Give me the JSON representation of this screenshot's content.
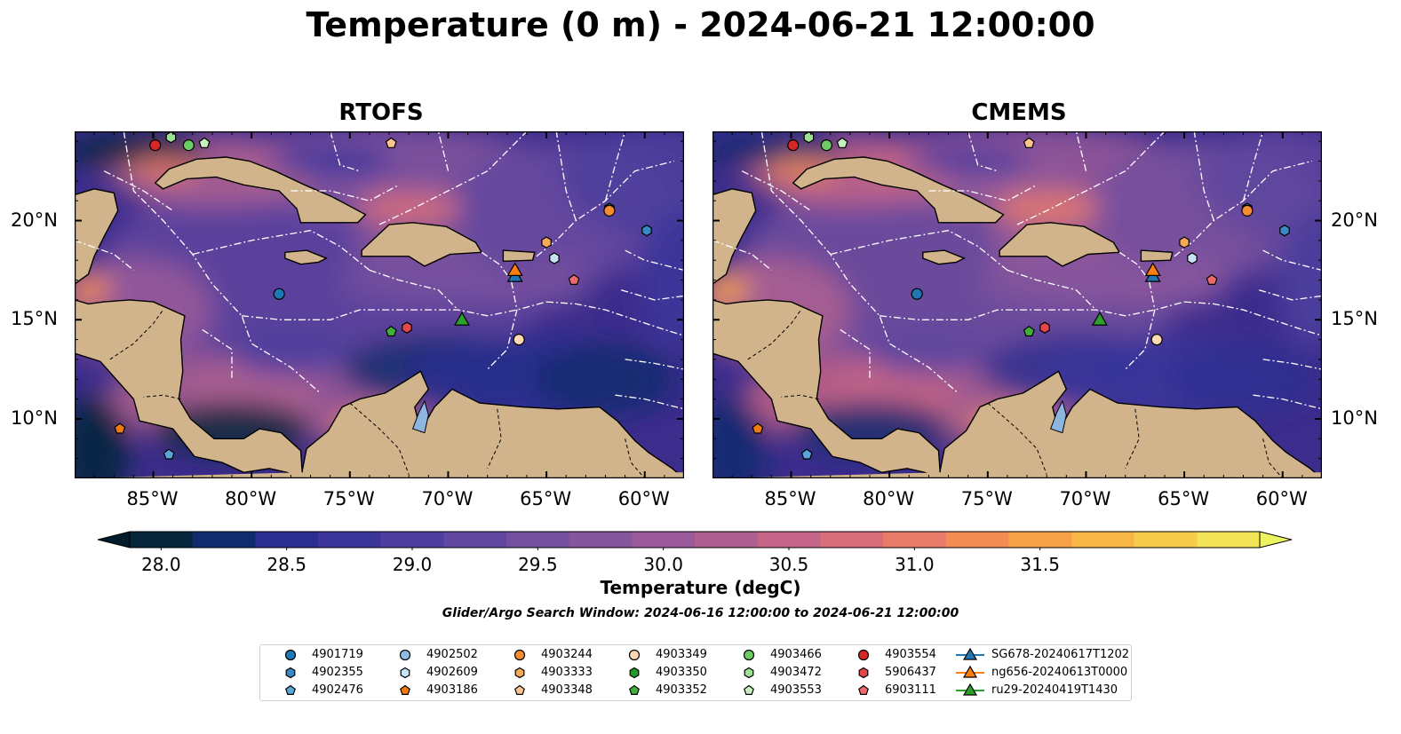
{
  "title": "Temperature (0 m) - 2024-06-21 12:00:00",
  "panels": [
    {
      "id": "rtofs",
      "title": "RTOFS"
    },
    {
      "id": "cmems",
      "title": "CMEMS"
    }
  ],
  "map": {
    "lon_range": [
      -89,
      -58
    ],
    "lat_range": [
      7,
      24.5
    ],
    "lon_ticks": [
      -85,
      -80,
      -75,
      -70,
      -65,
      -60
    ],
    "lon_tick_labels": [
      "85°W",
      "80°W",
      "75°W",
      "70°W",
      "65°W",
      "60°W"
    ],
    "lat_ticks": [
      10,
      15,
      20
    ],
    "lat_tick_labels": [
      "10°N",
      "15°N",
      "20°N"
    ],
    "land_color": "#d2b48c",
    "ocean_base_color": "#3c2c8c",
    "eez_line_color": "#ffffff"
  },
  "colorbar": {
    "min": 28.0,
    "max": 31.5,
    "tick_labels": [
      "28.0",
      "28.5",
      "29.0",
      "29.5",
      "30.0",
      "30.5",
      "31.0",
      "31.5"
    ],
    "ticks": [
      28.0,
      28.5,
      29.0,
      29.5,
      30.0,
      30.5,
      31.0,
      31.5
    ],
    "extend": "both",
    "colors": [
      "#05263b",
      "#112c6e",
      "#2b2f8f",
      "#3c369b",
      "#4e3e9e",
      "#60479f",
      "#734f9f",
      "#85559e",
      "#9a5a99",
      "#af6091",
      "#c56587",
      "#d86e7a",
      "#e87b6a",
      "#f18c55",
      "#f6a047",
      "#f8b647",
      "#f7cc4c",
      "#f2e456"
    ],
    "under_color": "#031a2b",
    "over_color": "#ebf45e",
    "label": "Temperature (degC)"
  },
  "search_window": "Glider/Argo Search Window: 2024-06-16 12:00:00 to 2024-06-21 12:00:00",
  "legend": [
    {
      "label": "4901719",
      "marker": "circle",
      "color": "#1f77b4"
    },
    {
      "label": "4902355",
      "marker": "hexagon",
      "color": "#3a8ac2"
    },
    {
      "label": "4902476",
      "marker": "pentagon",
      "color": "#5aa4d8"
    },
    {
      "label": "4902502",
      "marker": "circle",
      "color": "#8fbde6"
    },
    {
      "label": "4902609",
      "marker": "hexagon",
      "color": "#c6e2f5"
    },
    {
      "label": "4903186",
      "marker": "pentagon",
      "color": "#f07a10"
    },
    {
      "label": "4903244",
      "marker": "circle",
      "color": "#f58c32"
    },
    {
      "label": "4903333",
      "marker": "hexagon",
      "color": "#f8a85a"
    },
    {
      "label": "4903348",
      "marker": "pentagon",
      "color": "#fbc38f"
    },
    {
      "label": "4903349",
      "marker": "circle",
      "color": "#fdd9b5"
    },
    {
      "label": "4903350",
      "marker": "hexagon",
      "color": "#239a29"
    },
    {
      "label": "4903352",
      "marker": "pentagon",
      "color": "#3fae3a"
    },
    {
      "label": "4903466",
      "marker": "circle",
      "color": "#6ccb64"
    },
    {
      "label": "4903472",
      "marker": "hexagon",
      "color": "#9fe094"
    },
    {
      "label": "4903553",
      "marker": "pentagon",
      "color": "#c8f0bf"
    },
    {
      "label": "4903554",
      "marker": "circle",
      "color": "#d62728"
    },
    {
      "label": "5906437",
      "marker": "hexagon",
      "color": "#e2484a"
    },
    {
      "label": "6903111",
      "marker": "pentagon",
      "color": "#ec6a6c"
    },
    {
      "label": "SG678-20240617T1202",
      "marker": "triangle",
      "color": "#1f77b4"
    },
    {
      "label": "ng656-20240613T0000",
      "marker": "triangle",
      "color": "#ff7f0e"
    },
    {
      "label": "ru29-20240419T1430",
      "marker": "triangle",
      "color": "#2ca02c"
    }
  ],
  "observations": [
    {
      "id": "4903554",
      "lon": -84.9,
      "lat": 23.8
    },
    {
      "id": "4903472",
      "lon": -84.1,
      "lat": 24.2
    },
    {
      "id": "4903466",
      "lon": -83.2,
      "lat": 23.8
    },
    {
      "id": "4903553",
      "lon": -82.4,
      "lat": 23.9
    },
    {
      "id": "4903348",
      "lon": -72.9,
      "lat": 23.9
    },
    {
      "id": "4903350",
      "lon": -61.8,
      "lat": 20.6
    },
    {
      "id": "4903244",
      "lon": -61.8,
      "lat": 20.5
    },
    {
      "id": "4902355",
      "lon": -59.9,
      "lat": 19.5
    },
    {
      "id": "4903333",
      "lon": -65.0,
      "lat": 18.9
    },
    {
      "id": "4902609",
      "lon": -64.6,
      "lat": 18.1
    },
    {
      "id": "6903111",
      "lon": -63.6,
      "lat": 17.0
    },
    {
      "id": "4901719",
      "lon": -78.6,
      "lat": 16.3
    },
    {
      "id": "4903352",
      "lon": -72.9,
      "lat": 14.4
    },
    {
      "id": "5906437",
      "lon": -72.1,
      "lat": 14.6
    },
    {
      "id": "4903349",
      "lon": -66.4,
      "lat": 14.0
    },
    {
      "id": "4903186",
      "lon": -86.7,
      "lat": 9.5
    },
    {
      "id": "4902476",
      "lon": -84.2,
      "lat": 8.2
    }
  ],
  "gliders": [
    {
      "id": "SG678-20240617T1202",
      "lon": -66.6,
      "lat": 17.2
    },
    {
      "id": "ng656-20240613T0000",
      "lon": -66.6,
      "lat": 17.5
    },
    {
      "id": "ru29-20240419T1430",
      "lon": -69.3,
      "lat": 15.0
    }
  ]
}
